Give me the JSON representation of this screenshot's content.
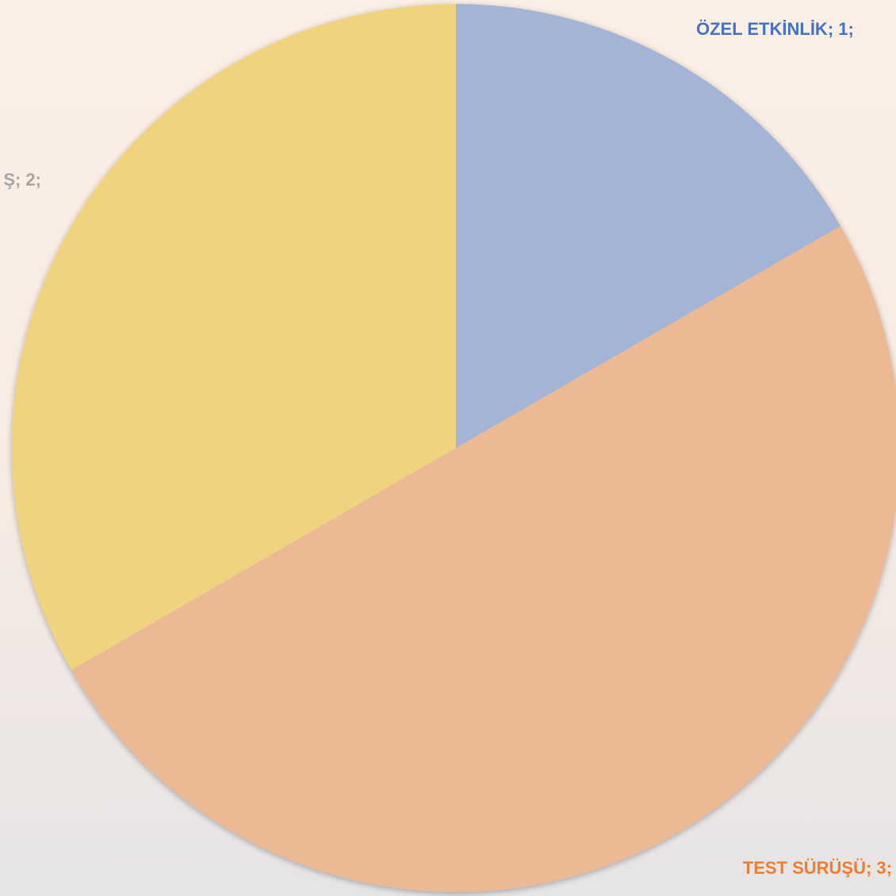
{
  "chart_data": {
    "type": "pie",
    "values": [
      1,
      3,
      2
    ],
    "value_labels": [
      "ÖZEL ETKİNLİK; 1;",
      "TEST SÜRÜŞÜ; 3;",
      "Ş; 2;"
    ],
    "colors": [
      "#a4b4d6",
      "#ebb994",
      "#f0d37f"
    ],
    "label_colors": [
      "#4472c4",
      "#ed7d31",
      "#a5a5a5"
    ]
  }
}
